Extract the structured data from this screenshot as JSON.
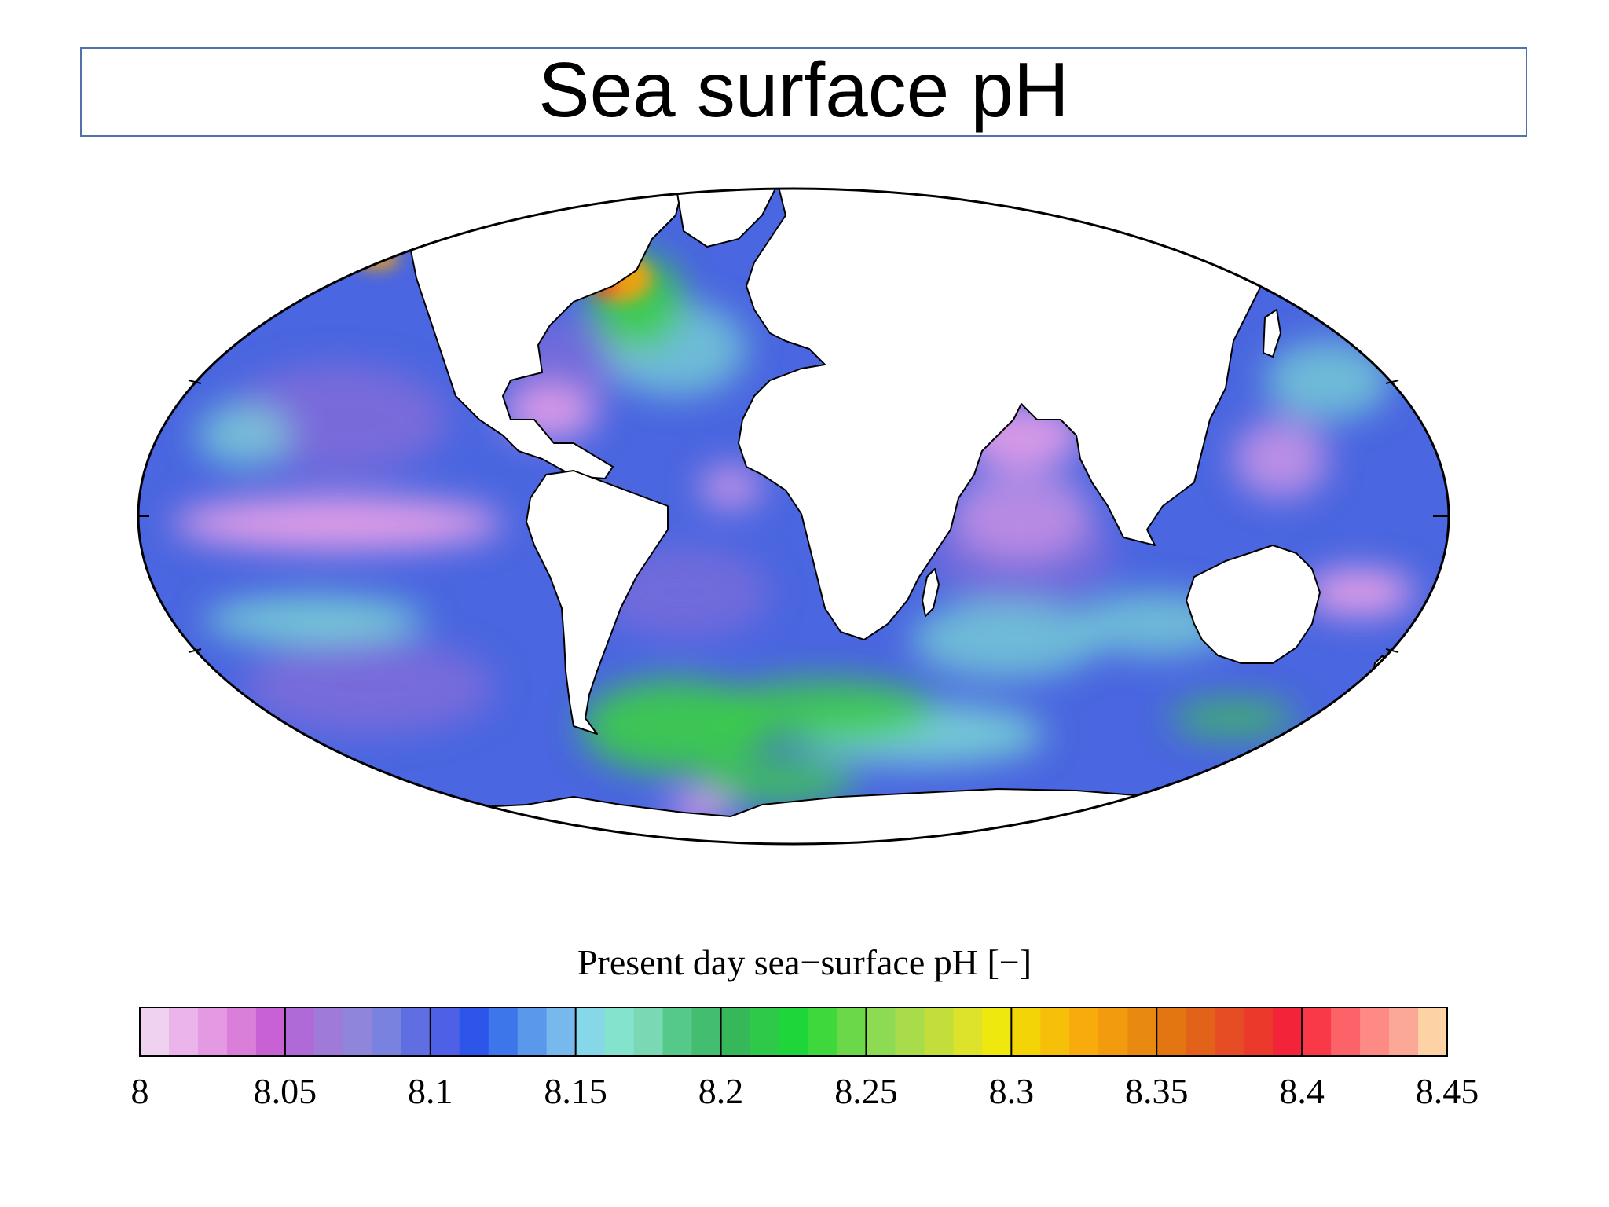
{
  "title": "Sea surface pH",
  "map": {
    "projection": "mollweide",
    "palette": {
      "ocean_base": "#4a66e0",
      "ocean_deep": "#8a6ed8",
      "low_ph_pink": "#e9a0e8",
      "high_ph_green": "#3ccf45",
      "teal": "#7ee0d4",
      "orange": "#f2a112",
      "red": "#f0432a",
      "land": "#ffffff",
      "coast": "#000000"
    }
  },
  "colorbar": {
    "label": "Present day sea−surface pH [−]",
    "min": 8,
    "max": 8.45,
    "tick_labels": [
      "8",
      "8.05",
      "8.1",
      "8.15",
      "8.2",
      "8.25",
      "8.3",
      "8.35",
      "8.4",
      "8.45"
    ],
    "colors": [
      "#efd2ef",
      "#ebb4ea",
      "#e39ae2",
      "#d97fd9",
      "#c862d4",
      "#b06ad8",
      "#a07ad9",
      "#8f86dc",
      "#7a82df",
      "#5f6fe2",
      "#4d60e6",
      "#2d55ea",
      "#3d76ea",
      "#5a98ec",
      "#77b9ec",
      "#86d8e8",
      "#84e3cd",
      "#7ad9b4",
      "#55c98a",
      "#43bd6f",
      "#35b75a",
      "#2fc94a",
      "#1fd63a",
      "#3ed83c",
      "#6ad848",
      "#8ddb52",
      "#a9dc4b",
      "#c3dd3a",
      "#dde22a",
      "#eee80e",
      "#f3d407",
      "#f6c00a",
      "#f7ab0c",
      "#f39b0e",
      "#e98a10",
      "#e47612",
      "#e3621a",
      "#e74d24",
      "#eb3a2c",
      "#f3243a",
      "#f93848",
      "#fb6368",
      "#fd8a84",
      "#fca897",
      "#fdd3a6"
    ]
  }
}
